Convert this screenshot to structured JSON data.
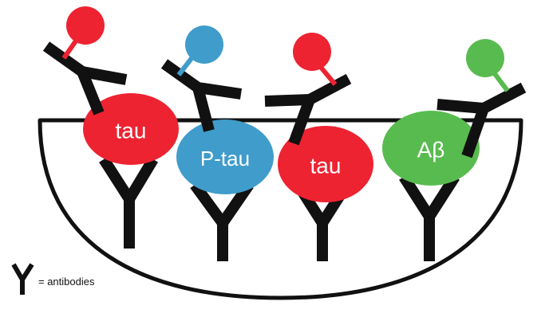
{
  "colors": {
    "tau": "#ee2331",
    "ptau": "#3f9ccb",
    "abeta": "#58bb4f",
    "antibody": "#111111",
    "well_outline": "#111111"
  },
  "proteins": [
    {
      "label": "tau",
      "color_key": "tau"
    },
    {
      "label": "P-tau",
      "color_key": "ptau"
    },
    {
      "label": "tau",
      "color_key": "tau"
    },
    {
      "label": "Aβ",
      "color_key": "abeta"
    }
  ],
  "legend": {
    "symbol": "Y",
    "text": "= antibodies"
  }
}
